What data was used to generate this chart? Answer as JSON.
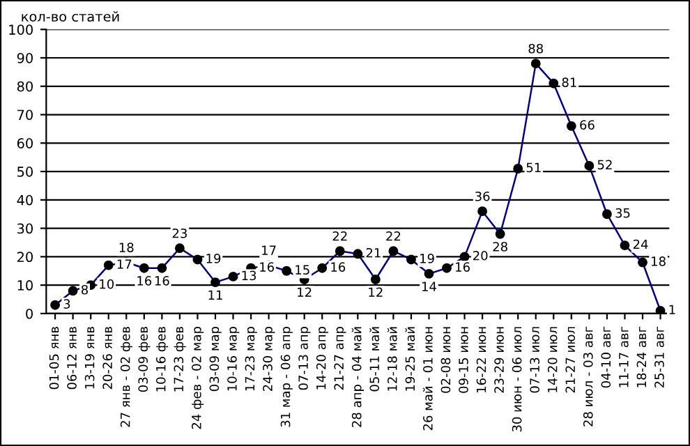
{
  "chart_data": {
    "type": "line",
    "ylabel": "кол-во статей",
    "categories": [
      "01-05 янв",
      "06-12 янв",
      "13-19 янв",
      "20-26 янв",
      "27 янв - 02 фев",
      "03-09 фев",
      "10-16 фев",
      "17-23 фев",
      "24 фев - 02 мар",
      "03-09 мар",
      "10-16 мар",
      "17-23 мар",
      "24-30 мар",
      "31 мар - 06 апр",
      "07-13 апр",
      "14-20 апр",
      "21-27 апр",
      "28 апр - 04 май",
      "05-11 май",
      "12-18 май",
      "19-25 май",
      "26 май - 01 июн",
      "02-08 июн",
      "09-15 июн",
      "16-22 июн",
      "23-29 июн",
      "30 июн - 06 июл",
      "07-13 июл",
      "14-20 июл",
      "21-27 июл",
      "28 июл - 03 авг",
      "04-10 авг",
      "11-17 авг",
      "18-24 авг",
      "25-31 авг"
    ],
    "series": [
      {
        "color": "#000080",
        "values": [
          3,
          8,
          10,
          17,
          18,
          16,
          16,
          23,
          19,
          11,
          13,
          16,
          17,
          15,
          12,
          16,
          22,
          21,
          12,
          22,
          19,
          14,
          16,
          20,
          36,
          28,
          51,
          88,
          81,
          66,
          52,
          35,
          24,
          18,
          1
        ]
      }
    ],
    "ylim": [
      0,
      100
    ],
    "yticks": [
      0,
      10,
      20,
      30,
      40,
      50,
      60,
      70,
      80,
      90,
      100
    ],
    "grid": "y",
    "marker": "circle",
    "line_style": "solid",
    "data_labels": true
  }
}
